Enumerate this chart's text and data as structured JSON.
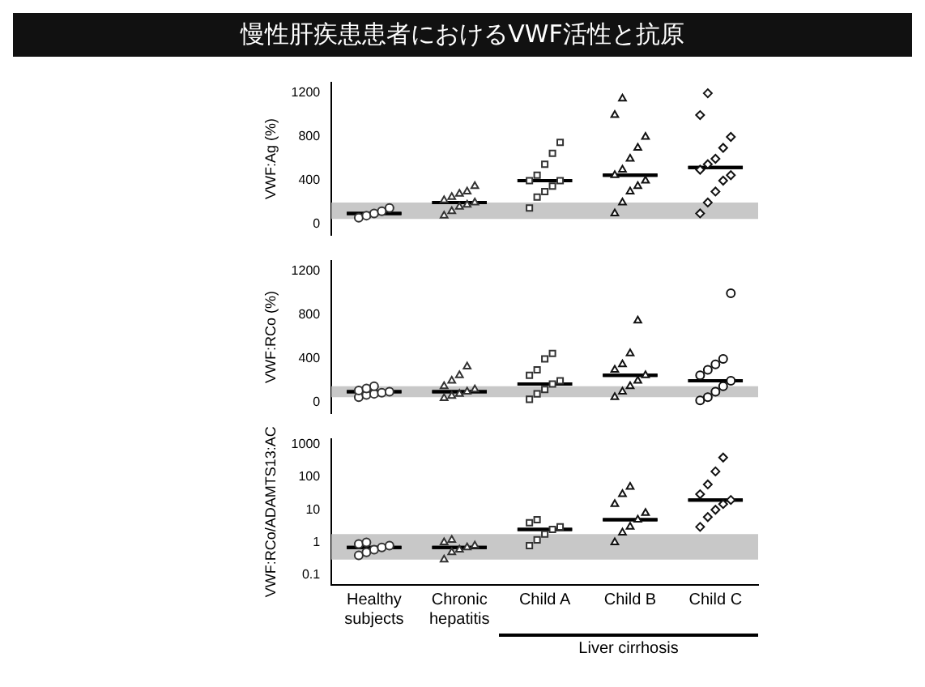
{
  "chart_data": [
    {
      "type": "scatter",
      "title": "慢性肝疾患患者におけるVWF活性と抗原",
      "ylabel": "VWF:Ag (%)",
      "categories": [
        "Healthy subjects",
        "Chronic hepatitis",
        "Child A",
        "Child B",
        "Child C"
      ],
      "ylim": [
        -100,
        1300
      ],
      "yticks": [
        0,
        400,
        800,
        1200
      ],
      "tick_labels": "y",
      "bands": [
        {
          "axis": "y",
          "from": 50,
          "to": 200,
          "color": "#c8c8c8"
        }
      ],
      "series": [
        {
          "x": [
            "Healthy subjects",
            "Healthy subjects",
            "Healthy subjects",
            "Healthy subjects",
            "Healthy subjects"
          ],
          "values": [
            60,
            80,
            100,
            120,
            150
          ],
          "color": "#333333",
          "marker": "circle"
        },
        {
          "x": [
            "Chronic hepatitis",
            "Chronic hepatitis",
            "Chronic hepatitis",
            "Chronic hepatitis",
            "Chronic hepatitis",
            "Chronic hepatitis",
            "Chronic hepatitis",
            "Chronic hepatitis",
            "Chronic hepatitis",
            "Chronic hepatitis"
          ],
          "values": [
            80,
            120,
            160,
            180,
            200,
            220,
            250,
            280,
            300,
            350
          ],
          "color": "#333333",
          "marker": "triangle"
        },
        {
          "x": [
            "Child A",
            "Child A",
            "Child A",
            "Child A",
            "Child A",
            "Child A",
            "Child A",
            "Child A",
            "Child A",
            "Child A"
          ],
          "values": [
            150,
            250,
            300,
            350,
            400,
            400,
            450,
            550,
            650,
            750
          ],
          "color": "#333333",
          "marker": "square"
        },
        {
          "x": [
            "Child B",
            "Child B",
            "Child B",
            "Child B",
            "Child B",
            "Child B",
            "Child B",
            "Child B",
            "Child B",
            "Child B",
            "Child B",
            "Child B"
          ],
          "values": [
            100,
            200,
            300,
            350,
            400,
            450,
            500,
            600,
            700,
            800,
            1000,
            1150
          ],
          "color": "#111111",
          "marker": "triangle"
        },
        {
          "x": [
            "Child C",
            "Child C",
            "Child C",
            "Child C",
            "Child C",
            "Child C",
            "Child C",
            "Child C",
            "Child C",
            "Child C",
            "Child C",
            "Child C"
          ],
          "values": [
            100,
            200,
            300,
            400,
            450,
            500,
            550,
            600,
            700,
            800,
            1000,
            1200
          ],
          "color": "#111111",
          "marker": "diamond"
        },
        {
          "type": "box",
          "color": "#000000",
          "boxes": [
            {
              "low": 100,
              "q1": 100,
              "median": 100,
              "q3": 100,
              "high": 100
            },
            {
              "low": 200,
              "q1": 200,
              "median": 200,
              "q3": 200,
              "high": 200
            },
            {
              "low": 400,
              "q1": 400,
              "median": 400,
              "q3": 400,
              "high": 400
            },
            {
              "low": 450,
              "q1": 450,
              "median": 450,
              "q3": 450,
              "high": 450
            },
            {
              "low": 520,
              "q1": 520,
              "median": 520,
              "q3": 520,
              "high": 520
            }
          ]
        }
      ]
    },
    {
      "type": "scatter",
      "ylabel": "VWF:RCo (%)",
      "categories": [
        "Healthy subjects",
        "Chronic hepatitis",
        "Child A",
        "Child B",
        "Child C"
      ],
      "ylim": [
        -100,
        1300
      ],
      "yticks": [
        0,
        400,
        800,
        1200
      ],
      "tick_labels": "y",
      "bands": [
        {
          "axis": "y",
          "from": 50,
          "to": 150,
          "color": "#c8c8c8"
        }
      ],
      "series": [
        {
          "x": [
            "Healthy subjects",
            "Healthy subjects",
            "Healthy subjects",
            "Healthy subjects",
            "Healthy subjects",
            "Healthy subjects",
            "Healthy subjects",
            "Healthy subjects"
          ],
          "values": [
            50,
            70,
            80,
            90,
            100,
            110,
            130,
            150
          ],
          "color": "#333333",
          "marker": "circle"
        },
        {
          "x": [
            "Chronic hepatitis",
            "Chronic hepatitis",
            "Chronic hepatitis",
            "Chronic hepatitis",
            "Chronic hepatitis",
            "Chronic hepatitis",
            "Chronic hepatitis",
            "Chronic hepatitis",
            "Chronic hepatitis"
          ],
          "values": [
            40,
            60,
            80,
            100,
            120,
            150,
            200,
            250,
            330
          ],
          "color": "#333333",
          "marker": "triangle"
        },
        {
          "x": [
            "Child A",
            "Child A",
            "Child A",
            "Child A",
            "Child A",
            "Child A",
            "Child A",
            "Child A",
            "Child A"
          ],
          "values": [
            30,
            80,
            120,
            170,
            200,
            250,
            300,
            400,
            450
          ],
          "color": "#333333",
          "marker": "square"
        },
        {
          "x": [
            "Child B",
            "Child B",
            "Child B",
            "Child B",
            "Child B",
            "Child B",
            "Child B",
            "Child B",
            "Child B"
          ],
          "values": [
            50,
            100,
            150,
            200,
            250,
            300,
            350,
            450,
            750
          ],
          "color": "#111111",
          "marker": "triangle"
        },
        {
          "x": [
            "Child C",
            "Child C",
            "Child C",
            "Child C",
            "Child C",
            "Child C",
            "Child C",
            "Child C",
            "Child C",
            "Child C"
          ],
          "values": [
            20,
            50,
            100,
            150,
            200,
            250,
            300,
            350,
            400,
            1000
          ],
          "color": "#111111",
          "marker": "circle"
        },
        {
          "type": "box",
          "color": "#000000",
          "boxes": [
            {
              "low": 100,
              "q1": 100,
              "median": 100,
              "q3": 100,
              "high": 100
            },
            {
              "low": 100,
              "q1": 100,
              "median": 100,
              "q3": 100,
              "high": 100
            },
            {
              "low": 170,
              "q1": 170,
              "median": 170,
              "q3": 170,
              "high": 170
            },
            {
              "low": 250,
              "q1": 250,
              "median": 250,
              "q3": 250,
              "high": 250
            },
            {
              "low": 200,
              "q1": 200,
              "median": 200,
              "q3": 200,
              "high": 200
            }
          ]
        }
      ]
    },
    {
      "type": "scatter",
      "ylabel": "VWF:RCo/ADAMTS13:AC",
      "categories": [
        "Healthy subjects",
        "Chronic hepatitis",
        "Child A",
        "Child B",
        "Child C"
      ],
      "log": true,
      "ylim": [
        0.05,
        1500
      ],
      "yticks": [
        0.1,
        1,
        10,
        100,
        1000
      ],
      "bands": [
        {
          "axis": "y",
          "from": 0.3,
          "to": 1.8,
          "color": "#c8c8c8"
        }
      ],
      "annotations": [
        "Liver cirrhosis"
      ],
      "series": [
        {
          "x": [
            "Healthy subjects",
            "Healthy subjects",
            "Healthy subjects",
            "Healthy subjects",
            "Healthy subjects",
            "Healthy subjects",
            "Healthy subjects"
          ],
          "values": [
            0.4,
            0.5,
            0.6,
            0.7,
            0.8,
            0.9,
            1.0
          ],
          "color": "#333333",
          "marker": "circle"
        },
        {
          "x": [
            "Chronic hepatitis",
            "Chronic hepatitis",
            "Chronic hepatitis",
            "Chronic hepatitis",
            "Chronic hepatitis",
            "Chronic hepatitis",
            "Chronic hepatitis"
          ],
          "values": [
            0.3,
            0.5,
            0.6,
            0.7,
            0.8,
            1.0,
            1.2
          ],
          "color": "#333333",
          "marker": "triangle"
        },
        {
          "x": [
            "Child A",
            "Child A",
            "Child A",
            "Child A",
            "Child A",
            "Child A",
            "Child A"
          ],
          "values": [
            0.8,
            1.2,
            1.8,
            2.5,
            3,
            4,
            5
          ],
          "color": "#333333",
          "marker": "square"
        },
        {
          "x": [
            "Child B",
            "Child B",
            "Child B",
            "Child B",
            "Child B",
            "Child B",
            "Child B",
            "Child B"
          ],
          "values": [
            1,
            2,
            3,
            5,
            8,
            15,
            30,
            50
          ],
          "color": "#111111",
          "marker": "triangle"
        },
        {
          "x": [
            "Child C",
            "Child C",
            "Child C",
            "Child C",
            "Child C",
            "Child C",
            "Child C",
            "Child C",
            "Child C"
          ],
          "values": [
            3,
            6,
            10,
            15,
            20,
            30,
            60,
            150,
            400
          ],
          "color": "#111111",
          "marker": "diamond"
        },
        {
          "type": "box",
          "color": "#000000",
          "boxes": [
            {
              "low": 0.7,
              "q1": 0.7,
              "median": 0.7,
              "q3": 0.7,
              "high": 0.7
            },
            {
              "low": 0.7,
              "q1": 0.7,
              "median": 0.7,
              "q3": 0.7,
              "high": 0.7
            },
            {
              "low": 2.5,
              "q1": 2.5,
              "median": 2.5,
              "q3": 2.5,
              "high": 2.5
            },
            {
              "low": 5,
              "q1": 5,
              "median": 5,
              "q3": 5,
              "high": 5
            },
            {
              "low": 20,
              "q1": 20,
              "median": 20,
              "q3": 20,
              "high": 20
            }
          ]
        }
      ]
    }
  ]
}
